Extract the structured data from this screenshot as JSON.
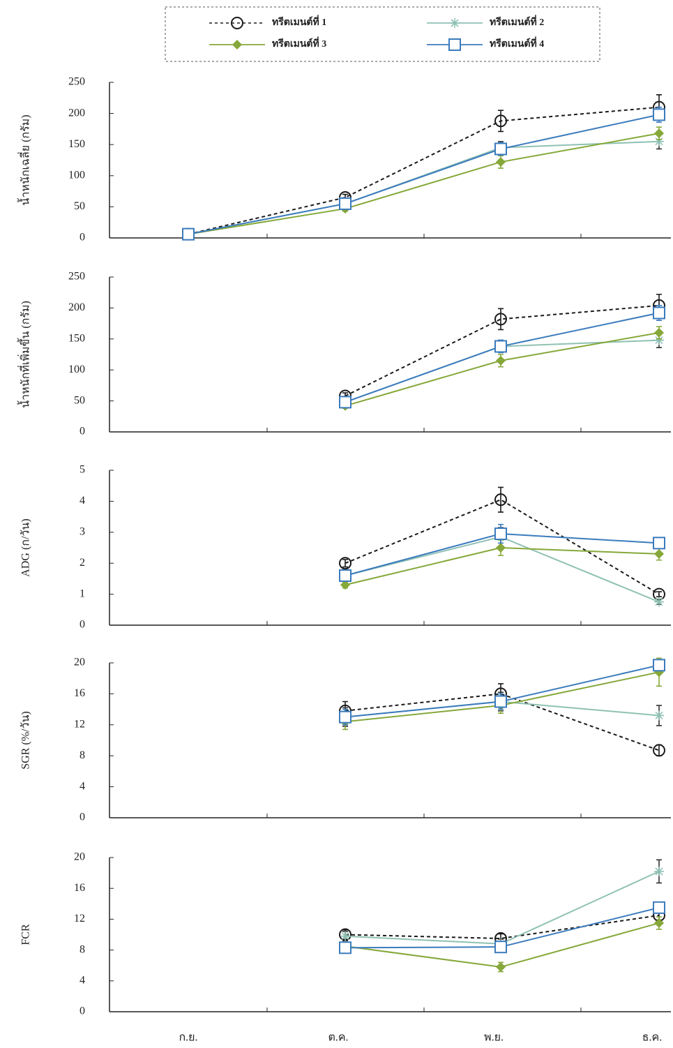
{
  "chart_data": [
    {
      "type": "line",
      "ylabel": "น้ำหนักเฉลี่ย (กรัม)",
      "ylim": [
        0,
        250
      ],
      "yticks": [
        0,
        50,
        100,
        150,
        200,
        250
      ],
      "series": [
        {
          "name": "ทรีตเมนต์ที่ 1",
          "color": "#1a1a1a",
          "values": [
            6,
            65,
            188,
            210
          ],
          "errors": [
            1,
            5,
            17,
            20
          ]
        },
        {
          "name": "ทรีตเมนต์ที่ 2",
          "color": "#8fc1b4",
          "values": [
            6,
            55,
            145,
            155
          ],
          "errors": [
            1,
            4,
            10,
            12
          ]
        },
        {
          "name": "ทรีตเมนต์ที่ 3",
          "color": "#86a83a",
          "values": [
            6,
            47,
            122,
            168
          ],
          "errors": [
            1,
            4,
            10,
            10
          ]
        },
        {
          "name": "ทรีตเมนต์ที่ 4",
          "color": "#3b7bbd",
          "values": [
            6,
            55,
            143,
            198
          ],
          "errors": [
            1,
            4,
            10,
            12
          ]
        }
      ]
    },
    {
      "type": "line",
      "ylabel": "น้ำหนักที่เพิ่มขึ้น (กรัม)",
      "ylim": [
        0,
        250
      ],
      "yticks": [
        0,
        50,
        100,
        150,
        200,
        250
      ],
      "series": [
        {
          "color": "#1a1a1a",
          "values": [
            null,
            58,
            182,
            204
          ],
          "errors": [
            null,
            5,
            17,
            18
          ]
        },
        {
          "color": "#8fc1b4",
          "values": [
            null,
            48,
            138,
            148
          ],
          "errors": [
            null,
            4,
            10,
            12
          ]
        },
        {
          "color": "#86a83a",
          "values": [
            null,
            42,
            115,
            160
          ],
          "errors": [
            null,
            4,
            10,
            10
          ]
        },
        {
          "color": "#3b7bbd",
          "values": [
            null,
            48,
            138,
            192
          ],
          "errors": [
            null,
            4,
            10,
            12
          ]
        }
      ]
    },
    {
      "type": "line",
      "ylabel": "ADG (ก/วัน)",
      "ylim": [
        0,
        5
      ],
      "yticks": [
        0,
        1,
        2,
        3,
        4,
        5
      ],
      "series": [
        {
          "color": "#1a1a1a",
          "values": [
            null,
            2.0,
            4.05,
            1.0
          ],
          "errors": [
            null,
            0.12,
            0.4,
            0.08
          ]
        },
        {
          "color": "#8fc1b4",
          "values": [
            null,
            1.6,
            2.85,
            0.75
          ],
          "errors": [
            null,
            0.1,
            0.3,
            0.08
          ]
        },
        {
          "color": "#86a83a",
          "values": [
            null,
            1.3,
            2.5,
            2.3
          ],
          "errors": [
            null,
            0.1,
            0.25,
            0.2
          ]
        },
        {
          "color": "#3b7bbd",
          "values": [
            null,
            1.6,
            2.95,
            2.65
          ],
          "errors": [
            null,
            0.1,
            0.3,
            0.1
          ]
        }
      ]
    },
    {
      "type": "line",
      "ylabel": "SGR (%/วัน)",
      "ylim": [
        0,
        20
      ],
      "yticks": [
        0,
        4,
        8,
        12,
        16,
        20
      ],
      "series": [
        {
          "color": "#1a1a1a",
          "values": [
            null,
            13.8,
            16.0,
            8.7
          ],
          "errors": [
            null,
            1.2,
            1.3,
            0.7
          ]
        },
        {
          "color": "#8fc1b4",
          "values": [
            null,
            13.0,
            15.0,
            13.2
          ],
          "errors": [
            null,
            1.2,
            1.2,
            1.3
          ]
        },
        {
          "color": "#86a83a",
          "values": [
            null,
            12.4,
            14.5,
            18.8
          ],
          "errors": [
            null,
            1.0,
            1.0,
            1.8
          ]
        },
        {
          "color": "#3b7bbd",
          "values": [
            null,
            13.0,
            15.0,
            19.7
          ],
          "errors": [
            null,
            1.0,
            1.0,
            0.5
          ]
        }
      ]
    },
    {
      "type": "line",
      "ylabel": "FCR",
      "ylim": [
        0,
        20
      ],
      "yticks": [
        0,
        4,
        8,
        12,
        16,
        20
      ],
      "categories": [
        "ก.ย.",
        "ต.ค.",
        "พ.ย.",
        "ธ.ค."
      ],
      "series": [
        {
          "color": "#1a1a1a",
          "values": [
            null,
            10.0,
            9.5,
            12.5
          ],
          "errors": [
            null,
            0.6,
            0.6,
            0.6
          ]
        },
        {
          "color": "#8fc1b4",
          "values": [
            null,
            9.8,
            8.8,
            18.2
          ],
          "errors": [
            null,
            0.6,
            0.6,
            1.5
          ]
        },
        {
          "color": "#86a83a",
          "values": [
            null,
            8.5,
            5.8,
            11.5
          ],
          "errors": [
            null,
            0.5,
            0.6,
            0.8
          ]
        },
        {
          "color": "#3b7bbd",
          "values": [
            null,
            8.3,
            8.4,
            13.5
          ],
          "errors": [
            null,
            0.5,
            0.6,
            0.6
          ]
        }
      ]
    }
  ]
}
